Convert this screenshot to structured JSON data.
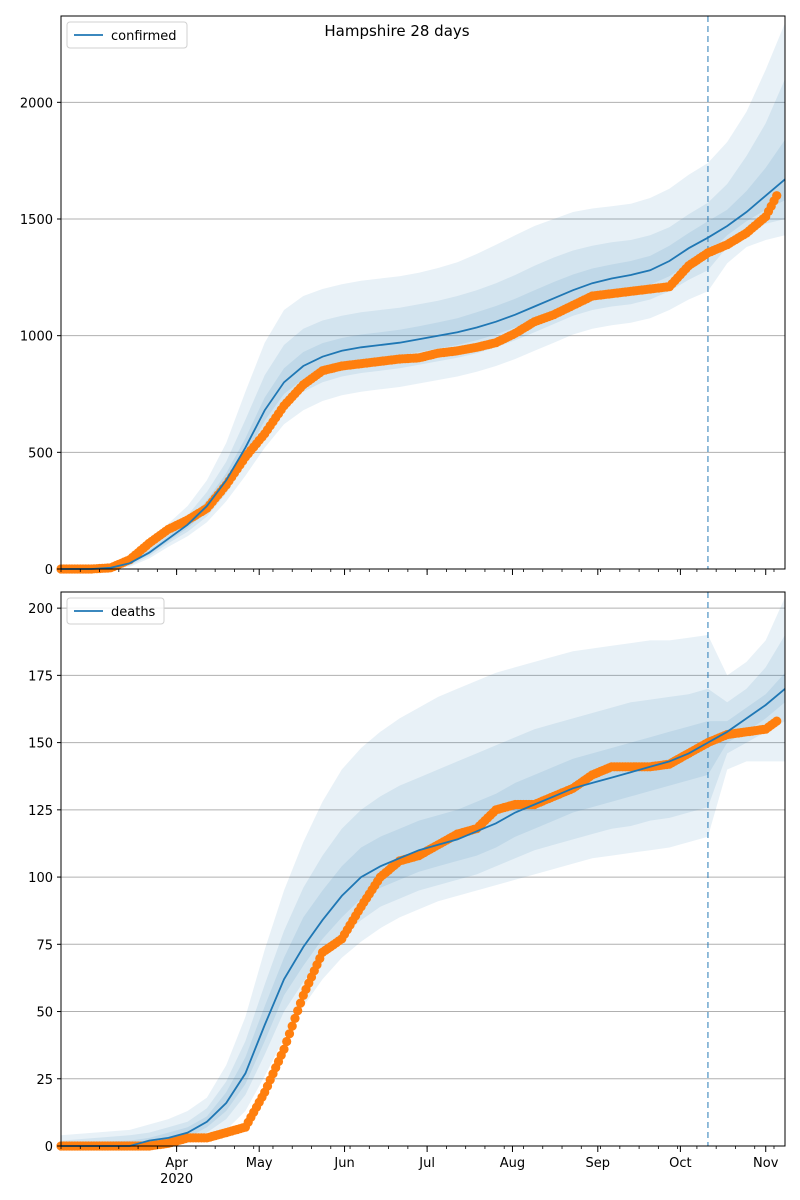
{
  "title": "Hampshire 28 days",
  "colors": {
    "model": "#1f77b4",
    "observed": "#ff7f0e",
    "band": "#1f77b4",
    "grid": "#b0b0b0",
    "vline": "#1f77b4"
  },
  "chart_data": [
    {
      "type": "line",
      "legend": "confirmed",
      "legend_position": "top-left",
      "grid": "horizontal",
      "x_range": [
        "2020-02-19",
        "2020-11-08"
      ],
      "ylim": [
        0,
        2370
      ],
      "yticks": [
        0,
        500,
        1000,
        1500,
        2000
      ],
      "forecast_start": "2020-10-11",
      "series": [
        {
          "name": "confirmed",
          "kind": "model",
          "x": [
            "2020-02-19",
            "2020-03-01",
            "2020-03-08",
            "2020-03-15",
            "2020-03-22",
            "2020-03-29",
            "2020-04-05",
            "2020-04-12",
            "2020-04-19",
            "2020-04-26",
            "2020-05-03",
            "2020-05-10",
            "2020-05-17",
            "2020-05-24",
            "2020-05-31",
            "2020-06-07",
            "2020-06-14",
            "2020-06-21",
            "2020-06-28",
            "2020-07-05",
            "2020-07-12",
            "2020-07-19",
            "2020-07-26",
            "2020-08-02",
            "2020-08-09",
            "2020-08-16",
            "2020-08-23",
            "2020-08-30",
            "2020-09-06",
            "2020-09-13",
            "2020-09-20",
            "2020-09-27",
            "2020-10-04",
            "2020-10-11",
            "2020-10-18",
            "2020-10-25",
            "2020-11-01",
            "2020-11-08"
          ],
          "y": [
            0,
            0,
            5,
            25,
            70,
            130,
            190,
            270,
            380,
            520,
            680,
            800,
            870,
            910,
            935,
            950,
            960,
            970,
            985,
            1000,
            1015,
            1035,
            1060,
            1090,
            1125,
            1160,
            1195,
            1225,
            1245,
            1260,
            1280,
            1320,
            1375,
            1420,
            1470,
            1530,
            1600,
            1670
          ]
        },
        {
          "name": "confirmed",
          "kind": "observed",
          "x": [
            "2020-02-19",
            "2020-03-01",
            "2020-03-08",
            "2020-03-15",
            "2020-03-22",
            "2020-03-29",
            "2020-04-05",
            "2020-04-12",
            "2020-04-19",
            "2020-04-26",
            "2020-05-03",
            "2020-05-10",
            "2020-05-17",
            "2020-05-24",
            "2020-05-31",
            "2020-06-07",
            "2020-06-14",
            "2020-06-21",
            "2020-06-28",
            "2020-07-05",
            "2020-07-12",
            "2020-07-19",
            "2020-07-26",
            "2020-08-02",
            "2020-08-09",
            "2020-08-16",
            "2020-08-23",
            "2020-08-30",
            "2020-09-06",
            "2020-09-13",
            "2020-09-20",
            "2020-09-27",
            "2020-10-04",
            "2020-10-11",
            "2020-10-18",
            "2020-10-25",
            "2020-11-01",
            "2020-11-05"
          ],
          "y": [
            0,
            0,
            5,
            40,
            110,
            170,
            210,
            260,
            360,
            480,
            580,
            700,
            790,
            850,
            870,
            880,
            890,
            900,
            905,
            925,
            935,
            950,
            970,
            1010,
            1060,
            1090,
            1130,
            1170,
            1180,
            1190,
            1200,
            1210,
            1300,
            1355,
            1390,
            1440,
            1510,
            1600
          ]
        }
      ],
      "bands": [
        {
          "label": "outer",
          "lower": [
            0,
            0,
            0,
            10,
            45,
            95,
            140,
            200,
            290,
            400,
            520,
            620,
            680,
            720,
            745,
            760,
            770,
            780,
            795,
            810,
            825,
            845,
            870,
            900,
            935,
            970,
            1005,
            1030,
            1045,
            1055,
            1075,
            1110,
            1155,
            1190,
            1310,
            1380,
            1410,
            1430
          ],
          "upper": [
            0,
            0,
            15,
            50,
            115,
            195,
            270,
            380,
            540,
            760,
            970,
            1110,
            1170,
            1200,
            1220,
            1235,
            1245,
            1255,
            1270,
            1290,
            1315,
            1350,
            1390,
            1430,
            1470,
            1500,
            1530,
            1545,
            1555,
            1565,
            1590,
            1630,
            1690,
            1740,
            1830,
            1960,
            2140,
            2340
          ]
        },
        {
          "label": "middle",
          "lower": [
            0,
            0,
            2,
            15,
            55,
            110,
            160,
            225,
            325,
            450,
            590,
            700,
            760,
            800,
            825,
            840,
            850,
            860,
            875,
            890,
            905,
            925,
            950,
            980,
            1015,
            1050,
            1085,
            1110,
            1125,
            1135,
            1155,
            1190,
            1240,
            1280,
            1380,
            1440,
            1480,
            1500
          ],
          "upper": [
            0,
            0,
            10,
            40,
            95,
            165,
            230,
            330,
            460,
            640,
            830,
            960,
            1030,
            1065,
            1085,
            1100,
            1110,
            1120,
            1135,
            1150,
            1170,
            1195,
            1225,
            1260,
            1300,
            1335,
            1365,
            1385,
            1400,
            1410,
            1430,
            1465,
            1520,
            1570,
            1650,
            1770,
            1910,
            2100
          ]
        },
        {
          "label": "inner",
          "lower": [
            0,
            0,
            3,
            20,
            62,
            120,
            175,
            248,
            352,
            485,
            635,
            750,
            815,
            855,
            880,
            895,
            905,
            915,
            930,
            945,
            960,
            980,
            1005,
            1035,
            1070,
            1105,
            1140,
            1168,
            1185,
            1198,
            1218,
            1255,
            1308,
            1350,
            1430,
            1490,
            1540,
            1580
          ],
          "upper": [
            0,
            0,
            7,
            31,
            80,
            142,
            207,
            295,
            410,
            560,
            735,
            860,
            930,
            968,
            990,
            1005,
            1015,
            1025,
            1040,
            1057,
            1075,
            1100,
            1127,
            1158,
            1195,
            1230,
            1262,
            1288,
            1305,
            1320,
            1342,
            1385,
            1440,
            1490,
            1540,
            1620,
            1720,
            1840
          ]
        }
      ]
    },
    {
      "type": "line",
      "legend": "deaths",
      "legend_position": "top-left",
      "grid": "horizontal",
      "x_range": [
        "2020-02-19",
        "2020-11-08"
      ],
      "ylim": [
        0,
        206
      ],
      "yticks": [
        0,
        25,
        50,
        75,
        100,
        125,
        150,
        175,
        200
      ],
      "xtick_labels": [
        {
          "date": "2020-04-01",
          "label": "Apr",
          "sublabel": "2020"
        },
        {
          "date": "2020-05-01",
          "label": "May"
        },
        {
          "date": "2020-06-01",
          "label": "Jun"
        },
        {
          "date": "2020-07-01",
          "label": "Jul"
        },
        {
          "date": "2020-08-01",
          "label": "Aug"
        },
        {
          "date": "2020-09-01",
          "label": "Sep"
        },
        {
          "date": "2020-10-01",
          "label": "Oct"
        },
        {
          "date": "2020-11-01",
          "label": "Nov"
        }
      ],
      "forecast_start": "2020-10-11",
      "series": [
        {
          "name": "deaths",
          "kind": "model",
          "x": [
            "2020-02-19",
            "2020-03-15",
            "2020-03-22",
            "2020-03-29",
            "2020-04-05",
            "2020-04-12",
            "2020-04-19",
            "2020-04-26",
            "2020-05-03",
            "2020-05-10",
            "2020-05-17",
            "2020-05-24",
            "2020-05-31",
            "2020-06-07",
            "2020-06-14",
            "2020-06-21",
            "2020-06-28",
            "2020-07-05",
            "2020-07-12",
            "2020-07-19",
            "2020-07-26",
            "2020-08-02",
            "2020-08-09",
            "2020-08-16",
            "2020-08-23",
            "2020-08-30",
            "2020-09-06",
            "2020-09-13",
            "2020-09-20",
            "2020-09-27",
            "2020-10-04",
            "2020-10-11",
            "2020-10-18",
            "2020-10-25",
            "2020-11-01",
            "2020-11-08"
          ],
          "y": [
            0,
            0,
            2,
            3,
            5,
            9,
            16,
            27,
            45,
            62,
            74,
            84,
            93,
            100,
            104,
            107,
            110,
            112,
            114,
            117,
            120,
            124,
            127,
            130,
            133,
            135,
            137,
            139,
            141,
            143,
            146,
            150,
            154,
            159,
            164,
            170
          ]
        },
        {
          "name": "deaths",
          "kind": "observed",
          "x": [
            "2020-02-19",
            "2020-03-15",
            "2020-03-22",
            "2020-03-29",
            "2020-04-05",
            "2020-04-12",
            "2020-04-19",
            "2020-04-26",
            "2020-05-03",
            "2020-05-10",
            "2020-05-17",
            "2020-05-24",
            "2020-05-31",
            "2020-06-07",
            "2020-06-14",
            "2020-06-21",
            "2020-06-28",
            "2020-07-05",
            "2020-07-12",
            "2020-07-19",
            "2020-07-26",
            "2020-08-02",
            "2020-08-09",
            "2020-08-16",
            "2020-08-23",
            "2020-08-30",
            "2020-09-06",
            "2020-09-13",
            "2020-09-20",
            "2020-09-27",
            "2020-10-04",
            "2020-10-11",
            "2020-10-18",
            "2020-10-25",
            "2020-11-01",
            "2020-11-05"
          ],
          "y": [
            0,
            0,
            0,
            1,
            3,
            3,
            5,
            7,
            20,
            36,
            56,
            72,
            77,
            89,
            100,
            106,
            108,
            112,
            116,
            118,
            125,
            127,
            127,
            130,
            133,
            138,
            141,
            141,
            141,
            142,
            146,
            150,
            153,
            154,
            155,
            158
          ]
        }
      ],
      "bands": [
        {
          "label": "outer",
          "lower": [
            0,
            0,
            0,
            0,
            1,
            3,
            6,
            13,
            26,
            40,
            52,
            62,
            70,
            76,
            81,
            85,
            88,
            91,
            93,
            95,
            97,
            99,
            101,
            103,
            105,
            107,
            108,
            109,
            110,
            111,
            113,
            115,
            140,
            143,
            143,
            143
          ],
          "upper": [
            4,
            6,
            8,
            10,
            13,
            18,
            30,
            48,
            73,
            95,
            113,
            128,
            140,
            148,
            154,
            159,
            163,
            167,
            170,
            173,
            176,
            178,
            180,
            182,
            184,
            185,
            186,
            187,
            188,
            188,
            189,
            190,
            175,
            180,
            188,
            204
          ]
        },
        {
          "label": "middle",
          "lower": [
            0,
            0,
            0,
            1,
            2,
            5,
            10,
            19,
            34,
            50,
            61,
            70,
            78,
            84,
            89,
            92,
            95,
            97,
            99,
            101,
            104,
            107,
            110,
            112,
            114,
            116,
            118,
            119,
            121,
            122,
            124,
            126,
            146,
            150,
            154,
            158
          ],
          "upper": [
            2,
            4,
            5,
            7,
            9,
            14,
            24,
            39,
            60,
            80,
            96,
            108,
            118,
            125,
            130,
            134,
            137,
            140,
            143,
            146,
            149,
            152,
            155,
            157,
            159,
            161,
            163,
            165,
            166,
            167,
            168,
            170,
            165,
            170,
            178,
            190
          ]
        },
        {
          "label": "inner",
          "lower": [
            0,
            0,
            1,
            2,
            3,
            7,
            13,
            23,
            39,
            56,
            67,
            77,
            85,
            92,
            96,
            99,
            102,
            104,
            106,
            108,
            111,
            115,
            118,
            121,
            124,
            126,
            128,
            130,
            132,
            134,
            136,
            138,
            150,
            154,
            159,
            165
          ],
          "upper": [
            1,
            2,
            3,
            5,
            7,
            11,
            20,
            33,
            52,
            70,
            85,
            95,
            104,
            111,
            115,
            118,
            121,
            123,
            125,
            128,
            131,
            135,
            138,
            141,
            144,
            146,
            148,
            150,
            152,
            154,
            156,
            158,
            158,
            163,
            168,
            176
          ]
        }
      ]
    }
  ]
}
